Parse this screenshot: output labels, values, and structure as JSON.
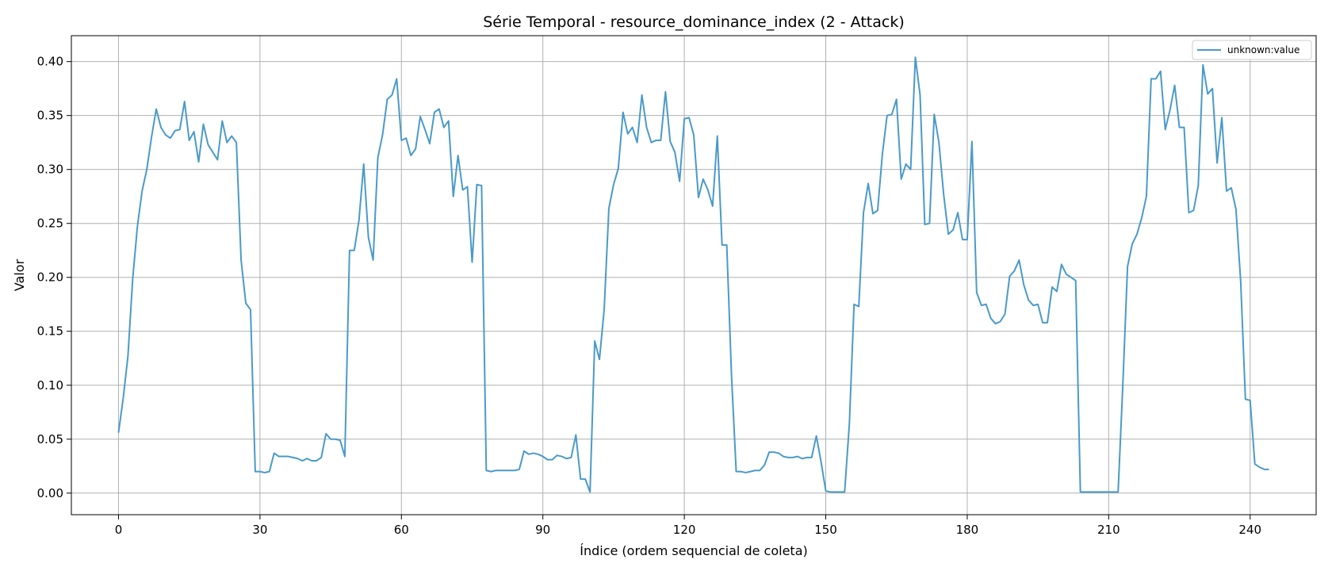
{
  "chart_data": {
    "type": "line",
    "title": "Série Temporal - resource_dominance_index (2 - Attack)",
    "xlabel": "Índice (ordem sequencial de coleta)",
    "ylabel": "Valor",
    "xlim": [
      -10,
      254
    ],
    "ylim": [
      -0.02,
      0.424
    ],
    "xticks": [
      0,
      30,
      60,
      90,
      120,
      150,
      180,
      210,
      240
    ],
    "xtick_labels": [
      "0",
      "30",
      "60",
      "90",
      "120",
      "150",
      "180",
      "210",
      "240"
    ],
    "yticks": [
      0.0,
      0.05,
      0.1,
      0.15,
      0.2,
      0.25,
      0.3,
      0.35,
      0.4
    ],
    "ytick_labels": [
      "0.00",
      "0.05",
      "0.10",
      "0.15",
      "0.20",
      "0.25",
      "0.30",
      "0.35",
      "0.40"
    ],
    "grid": true,
    "legend_position": "upper right",
    "series": [
      {
        "name": "unknown:value",
        "color": "#4a9ac9",
        "values": [
          0.056,
          0.088,
          0.127,
          0.198,
          0.247,
          0.28,
          0.3,
          0.33,
          0.356,
          0.339,
          0.332,
          0.329,
          0.336,
          0.337,
          0.363,
          0.327,
          0.335,
          0.307,
          0.342,
          0.323,
          0.316,
          0.309,
          0.345,
          0.325,
          0.331,
          0.325,
          0.216,
          0.176,
          0.17,
          0.02,
          0.02,
          0.019,
          0.02,
          0.037,
          0.034,
          0.034,
          0.034,
          0.033,
          0.032,
          0.03,
          0.032,
          0.03,
          0.03,
          0.033,
          0.055,
          0.05,
          0.05,
          0.049,
          0.034,
          0.225,
          0.225,
          0.253,
          0.305,
          0.237,
          0.216,
          0.311,
          0.332,
          0.365,
          0.369,
          0.384,
          0.327,
          0.329,
          0.313,
          0.319,
          0.349,
          0.337,
          0.324,
          0.353,
          0.356,
          0.339,
          0.345,
          0.275,
          0.313,
          0.281,
          0.284,
          0.214,
          0.286,
          0.285,
          0.021,
          0.02,
          0.021,
          0.021,
          0.021,
          0.021,
          0.021,
          0.022,
          0.039,
          0.036,
          0.037,
          0.036,
          0.034,
          0.031,
          0.031,
          0.035,
          0.034,
          0.032,
          0.033,
          0.054,
          0.013,
          0.013,
          0.001,
          0.141,
          0.124,
          0.17,
          0.264,
          0.286,
          0.301,
          0.353,
          0.333,
          0.339,
          0.325,
          0.369,
          0.339,
          0.325,
          0.327,
          0.327,
          0.372,
          0.326,
          0.316,
          0.289,
          0.347,
          0.348,
          0.332,
          0.274,
          0.291,
          0.281,
          0.266,
          0.331,
          0.23,
          0.23,
          0.11,
          0.02,
          0.02,
          0.019,
          0.02,
          0.021,
          0.021,
          0.026,
          0.038,
          0.038,
          0.037,
          0.034,
          0.033,
          0.033,
          0.034,
          0.032,
          0.033,
          0.033,
          0.053,
          0.029,
          0.002,
          0.001,
          0.001,
          0.001,
          0.001,
          0.064,
          0.175,
          0.173,
          0.26,
          0.287,
          0.259,
          0.262,
          0.314,
          0.35,
          0.351,
          0.365,
          0.291,
          0.305,
          0.3,
          0.404,
          0.369,
          0.249,
          0.25,
          0.351,
          0.325,
          0.277,
          0.24,
          0.244,
          0.26,
          0.235,
          0.235,
          0.326,
          0.186,
          0.174,
          0.175,
          0.162,
          0.157,
          0.159,
          0.166,
          0.201,
          0.206,
          0.216,
          0.193,
          0.179,
          0.174,
          0.175,
          0.158,
          0.158,
          0.191,
          0.187,
          0.212,
          0.203,
          0.2,
          0.197,
          0.001,
          0.001,
          0.001,
          0.001,
          0.001,
          0.001,
          0.001,
          0.001,
          0.001,
          0.1,
          0.21,
          0.231,
          0.24,
          0.255,
          0.275,
          0.384,
          0.384,
          0.391,
          0.337,
          0.355,
          0.378,
          0.339,
          0.339,
          0.26,
          0.262,
          0.285,
          0.397,
          0.37,
          0.375,
          0.306,
          0.348,
          0.28,
          0.283,
          0.263,
          0.196,
          0.087,
          0.086,
          0.027,
          0.024,
          0.022,
          0.022
        ]
      }
    ]
  }
}
